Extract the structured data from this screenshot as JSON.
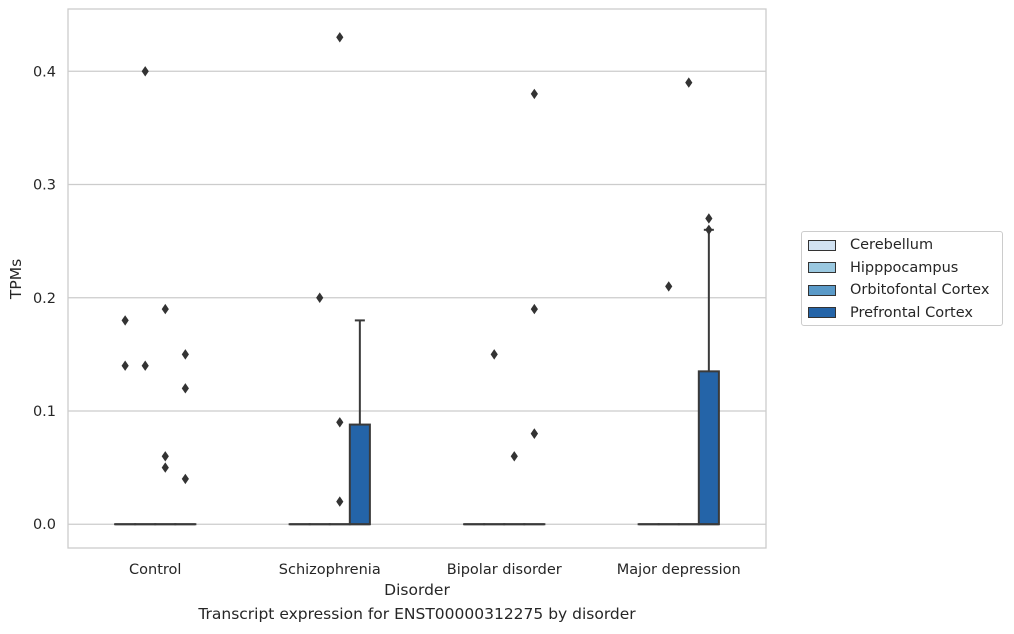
{
  "chart_data": {
    "type": "boxplot",
    "title": "Transcript expression for ENST00000312275 by disorder",
    "xlabel": "Disorder",
    "ylabel": "TPMs",
    "ylim": [
      -0.021,
      0.455
    ],
    "yticks": [
      0.0,
      0.1,
      0.2,
      0.3,
      0.4
    ],
    "ytick_labels": [
      "0.0",
      "0.1",
      "0.2",
      "0.3",
      "0.4"
    ],
    "grid": "horizontal",
    "legend_position": "right",
    "categories": [
      "Control",
      "Schizophrenia",
      "Bipolar disorder",
      "Major depression"
    ],
    "series": [
      {
        "name": "Cerebellum",
        "color": "#d1e2f2",
        "boxes": [
          {
            "q1": 0,
            "median": 0,
            "q3": 0,
            "whisker_low": 0,
            "whisker_high": 0,
            "outliers": [
              0.14,
              0.18
            ]
          },
          {
            "q1": 0,
            "median": 0,
            "q3": 0,
            "whisker_low": 0,
            "whisker_high": 0,
            "outliers": []
          },
          {
            "q1": 0,
            "median": 0,
            "q3": 0,
            "whisker_low": 0,
            "whisker_high": 0,
            "outliers": []
          },
          {
            "q1": 0,
            "median": 0,
            "q3": 0,
            "whisker_low": 0,
            "whisker_high": 0,
            "outliers": []
          }
        ]
      },
      {
        "name": "Hipppocampus",
        "color": "#9ac8e0",
        "boxes": [
          {
            "q1": 0,
            "median": 0,
            "q3": 0,
            "whisker_low": 0,
            "whisker_high": 0,
            "outliers": [
              0.14,
              0.4
            ]
          },
          {
            "q1": 0,
            "median": 0,
            "q3": 0,
            "whisker_low": 0,
            "whisker_high": 0,
            "outliers": [
              0.2
            ]
          },
          {
            "q1": 0,
            "median": 0,
            "q3": 0,
            "whisker_low": 0,
            "whisker_high": 0,
            "outliers": [
              0.15
            ]
          },
          {
            "q1": 0,
            "median": 0,
            "q3": 0,
            "whisker_low": 0,
            "whisker_high": 0,
            "outliers": [
              0.21
            ]
          }
        ]
      },
      {
        "name": "Orbitofontal Cortex",
        "color": "#5a9ac8",
        "boxes": [
          {
            "q1": 0,
            "median": 0,
            "q3": 0,
            "whisker_low": 0,
            "whisker_high": 0,
            "outliers": [
              0.05,
              0.06,
              0.19
            ]
          },
          {
            "q1": 0,
            "median": 0,
            "q3": 0,
            "whisker_low": 0,
            "whisker_high": 0,
            "outliers": [
              0.02,
              0.09,
              0.43
            ]
          },
          {
            "q1": 0,
            "median": 0,
            "q3": 0,
            "whisker_low": 0,
            "whisker_high": 0,
            "outliers": [
              0.06
            ]
          },
          {
            "q1": 0,
            "median": 0,
            "q3": 0,
            "whisker_low": 0,
            "whisker_high": 0,
            "outliers": [
              0.39
            ]
          }
        ]
      },
      {
        "name": "Prefrontal Cortex",
        "color": "#2464a8",
        "boxes": [
          {
            "q1": 0,
            "median": 0,
            "q3": 0,
            "whisker_low": 0,
            "whisker_high": 0,
            "outliers": [
              0.04,
              0.12,
              0.15
            ]
          },
          {
            "q1": 0,
            "median": 0,
            "q3": 0.088,
            "whisker_low": 0,
            "whisker_high": 0.18,
            "outliers": []
          },
          {
            "q1": 0,
            "median": 0,
            "q3": 0,
            "whisker_low": 0,
            "whisker_high": 0,
            "outliers": [
              0.08,
              0.08,
              0.19,
              0.38
            ]
          },
          {
            "q1": 0,
            "median": 0,
            "q3": 0.135,
            "whisker_low": 0,
            "whisker_high": 0.26,
            "outliers": [
              0.26,
              0.27
            ]
          }
        ]
      }
    ]
  }
}
